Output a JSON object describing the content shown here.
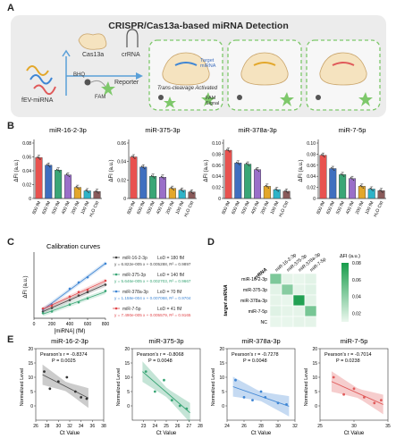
{
  "panels": {
    "A": "A",
    "B": "B",
    "C": "C",
    "D": "D",
    "E": "E"
  },
  "schematic": {
    "title": "CRISPR/Cas13a-based miRNA Detection",
    "cas13a": "Cas13a",
    "crrna": "crRNA",
    "sample": "fEV-miRNA",
    "bhq": "BHQ",
    "fam": "FAM",
    "reporter": "Reporter",
    "target": "Target\nmiRNA",
    "trans": "Trans-cleavage Activated",
    "fam_signal": "FAM\nSignal",
    "colors": {
      "box_bg": "#ececec",
      "dash": "#7ec86b"
    }
  },
  "chart_data": [
    {
      "id": "B1",
      "type": "bar",
      "title": "miR-16-2-3p",
      "ylabel": "ΔFI (a.u.)",
      "ylim": [
        0,
        0.08
      ],
      "yticks": [
        "0",
        "0.02",
        "0.04",
        "0.06",
        "0.08"
      ],
      "categories": [
        "800 fM",
        "600 fM",
        "500 fM",
        "400 fM",
        "200 fM",
        "100 fM",
        "H₂O Ctrl"
      ],
      "values": [
        0.059,
        0.048,
        0.041,
        0.034,
        0.016,
        0.011,
        0.01
      ],
      "colors": [
        "#e8524f",
        "#3f6fbf",
        "#3aa676",
        "#9a6fc9",
        "#e3a72a",
        "#2eb3c8",
        "#8a5a5a"
      ]
    },
    {
      "id": "B2",
      "type": "bar",
      "title": "miR-375-3p",
      "ylabel": "ΔFI (a.u.)",
      "ylim": [
        0,
        0.06
      ],
      "yticks": [
        "0",
        "0.02",
        "0.04",
        "0.06"
      ],
      "categories": [
        "800 fM",
        "600 fM",
        "500 fM",
        "400 fM",
        "200 fM",
        "100 fM",
        "H₂O Ctrl"
      ],
      "values": [
        0.045,
        0.034,
        0.024,
        0.023,
        0.011,
        0.009,
        0.007
      ],
      "colors": [
        "#e8524f",
        "#3f6fbf",
        "#3aa676",
        "#9a6fc9",
        "#e3a72a",
        "#2eb3c8",
        "#8a5a5a"
      ]
    },
    {
      "id": "B3",
      "type": "bar",
      "title": "miR-378a-3p",
      "ylabel": "ΔFI (a.u.)",
      "ylim": [
        0,
        0.1
      ],
      "yticks": [
        "0",
        "0.02",
        "0.04",
        "0.06",
        "0.08",
        "0.10"
      ],
      "categories": [
        "800 fM",
        "600 fM",
        "500 fM",
        "400 fM",
        "200 fM",
        "100 fM",
        "H₂O Ctrl"
      ],
      "values": [
        0.087,
        0.064,
        0.062,
        0.052,
        0.022,
        0.016,
        0.013
      ],
      "colors": [
        "#e8524f",
        "#3f6fbf",
        "#3aa676",
        "#9a6fc9",
        "#e3a72a",
        "#2eb3c8",
        "#8a5a5a"
      ]
    },
    {
      "id": "B4",
      "type": "bar",
      "title": "miR-7-5p",
      "ylabel": "ΔFI (a.u.)",
      "ylim": [
        0,
        0.1
      ],
      "yticks": [
        "0",
        "0.02",
        "0.04",
        "0.06",
        "0.08",
        "0.10"
      ],
      "categories": [
        "800 fM",
        "600 fM",
        "500 fM",
        "400 fM",
        "200 fM",
        "100 fM",
        "H₂O Ctrl"
      ],
      "values": [
        0.078,
        0.054,
        0.043,
        0.036,
        0.022,
        0.017,
        0.014
      ],
      "colors": [
        "#e8524f",
        "#3f6fbf",
        "#3aa676",
        "#9a6fc9",
        "#e3a72a",
        "#2eb3c8",
        "#8a5a5a"
      ]
    },
    {
      "id": "C",
      "type": "scatter",
      "title": "Calibration curves",
      "xlabel": "[miRNA] (fM)",
      "ylabel": "ΔFI (a.u.)",
      "xlim": [
        0,
        800
      ],
      "xticks": [
        "0",
        "200",
        "400",
        "600",
        "800"
      ],
      "x": [
        100,
        200,
        400,
        500,
        600,
        800
      ],
      "series": [
        {
          "name": "miR-16-2-3p",
          "lod": "LoD = 180 fM",
          "equation": "y = 6.822e-005 x + 0.005288, R² = 0.9897",
          "color": "#444444",
          "y": [
            0.012,
            0.018,
            0.032,
            0.04,
            0.046,
            0.059
          ]
        },
        {
          "name": "miR-375-3p",
          "lod": "LoD = 140 fM",
          "equation": "y = 5.646e-005 x + 0.002703, R² = 0.9667",
          "color": "#3aa676",
          "y": [
            0.009,
            0.012,
            0.024,
            0.028,
            0.035,
            0.048
          ]
        },
        {
          "name": "miR-378a-3p",
          "lod": "LoD = 70 fM",
          "equation": "y = 1.158e-004 x + 0.007068, R² = 0.9704",
          "color": "#3f86d4",
          "y": [
            0.016,
            0.024,
            0.052,
            0.063,
            0.072,
            0.096
          ]
        },
        {
          "name": "miR-7-5p",
          "lod": "LoD = 41 fM",
          "equation": "y = 7.490e-005 x + 0.005579, R² = 0.9165",
          "color": "#e0464a",
          "y": [
            0.017,
            0.022,
            0.038,
            0.046,
            0.05,
            0.066
          ]
        }
      ]
    },
    {
      "id": "D",
      "type": "heatmap",
      "xlabel_corner": "crRNA",
      "ylabel": "target miRNA",
      "columns": [
        "miR-16-2-3p",
        "miR-375-3p",
        "miR-378a-3p",
        "miR-7-5p"
      ],
      "rows": [
        "miR-16-2-3p",
        "miR-375-3p",
        "miR-378a-3p",
        "miR-7-5p",
        "NC"
      ],
      "values": [
        [
          0.046,
          0.012,
          0.011,
          0.013
        ],
        [
          0.013,
          0.043,
          0.012,
          0.014
        ],
        [
          0.012,
          0.011,
          0.076,
          0.013
        ],
        [
          0.014,
          0.012,
          0.012,
          0.048
        ],
        [
          0.011,
          0.011,
          0.012,
          0.012
        ]
      ],
      "colorbar": {
        "title": "ΔFI (a.u.)",
        "ticks": [
          "0.08",
          "0.06",
          "0.04",
          "0.02"
        ],
        "range": [
          0.01,
          0.08
        ]
      }
    },
    {
      "id": "E1",
      "type": "scatter",
      "title": "miR-16-2-3p",
      "stat_r": "Pearson's r = -0.8374",
      "stat_p": "P = 0.0025",
      "xlabel": "Ct Value",
      "ylabel": "Normalized Level",
      "xlim": [
        26,
        38
      ],
      "ylim": [
        -5,
        20
      ],
      "xticks": [
        "26",
        "28",
        "30",
        "32",
        "34",
        "36",
        "38"
      ],
      "yticks": [
        "0",
        "5",
        "10",
        "15",
        "20"
      ],
      "color": "#555555",
      "x": [
        27.5,
        28.5,
        30,
        31.5,
        33,
        34,
        35
      ],
      "y": [
        12,
        6,
        8.5,
        10,
        5,
        3,
        2.5
      ]
    },
    {
      "id": "E2",
      "type": "scatter",
      "title": "miR-375-3p",
      "stat_r": "Pearson's r = -0.8068",
      "stat_p": "P = 0.0048",
      "xlabel": "Ct Value",
      "ylabel": "Normalized Level",
      "xlim": [
        22,
        28
      ],
      "ylim": [
        -5,
        20
      ],
      "xticks": [
        "23",
        "24",
        "25",
        "26",
        "27",
        "28"
      ],
      "yticks": [
        "0",
        "5",
        "10",
        "15",
        "20"
      ],
      "color": "#3aa676",
      "x": [
        23.2,
        24,
        24.8,
        25.5,
        26.2,
        26.8
      ],
      "y": [
        12,
        5,
        9,
        2,
        0,
        -1
      ]
    },
    {
      "id": "E3",
      "type": "scatter",
      "title": "miR-378a-3p",
      "stat_r": "Pearson's r = -0.7278",
      "stat_p": "P = 0.0048",
      "xlabel": "Ct Value",
      "ylabel": "Normalized Level",
      "xlim": [
        24,
        32
      ],
      "ylim": [
        -5,
        20
      ],
      "xticks": [
        "24",
        "26",
        "28",
        "30",
        "32"
      ],
      "yticks": [
        "0",
        "5",
        "10",
        "15",
        "20"
      ],
      "color": "#3f86d4",
      "x": [
        25,
        26,
        27,
        28,
        28.5,
        30,
        31
      ],
      "y": [
        9,
        3,
        2,
        5,
        3,
        1,
        0.5
      ]
    },
    {
      "id": "E4",
      "type": "scatter",
      "title": "miR-7-5p",
      "stat_r": "Pearson's r = -0.7014",
      "stat_p": "P = 0.0238",
      "xlabel": "Ct Value",
      "ylabel": "Normalized Level",
      "xlim": [
        25,
        35
      ],
      "ylim": [
        -5,
        20
      ],
      "xticks": [
        "25",
        "30",
        "35"
      ],
      "yticks": [
        "0",
        "5",
        "10",
        "15",
        "20"
      ],
      "color": "#e05a5a",
      "x": [
        27,
        28.5,
        30,
        31.5,
        33,
        34
      ],
      "y": [
        10,
        4,
        6,
        3,
        1,
        2
      ]
    }
  ]
}
